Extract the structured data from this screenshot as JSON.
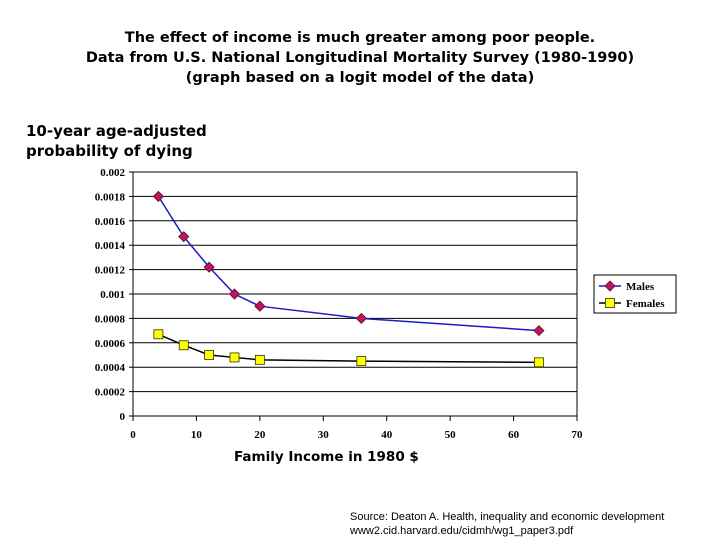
{
  "title_lines": [
    "The effect of income is much greater among poor people.",
    "Data from U.S. National Longitudinal Mortality Survey (1980-1990)",
    "(graph based on a logit model of the data)"
  ],
  "source_lines": [
    "Source:  Deaton A. Health, inequality and economic development",
    "www2.cid.harvard.edu/cidmh/wg1_paper3.pdf"
  ],
  "colors": {
    "males": "#1c1cc4",
    "males_marker": "#c0175a",
    "females": "#000000",
    "females_marker": "#ffff00"
  },
  "chart_data": {
    "type": "line",
    "title": "",
    "ylabel_lines": [
      "10-year age-adjusted",
      "probability of dying"
    ],
    "xlabel": "Family Income in 1980 $",
    "xlim": [
      0,
      70
    ],
    "ylim": [
      0,
      0.002
    ],
    "x_ticks": [
      "0",
      "10",
      "20",
      "30",
      "40",
      "50",
      "60",
      "70"
    ],
    "y_ticks": [
      "0",
      "0.0002",
      "0.0004",
      "0.0006",
      "0.0008",
      "0.001",
      "0.0012",
      "0.0014",
      "0.0016",
      "0.0018",
      "0.002"
    ],
    "grid": "horizontal",
    "legend_position": "right",
    "series": [
      {
        "name": "Males",
        "x": [
          4,
          8,
          12,
          16,
          20,
          36,
          64
        ],
        "y": [
          0.0018,
          0.00147,
          0.00122,
          0.001,
          0.0009,
          0.0008,
          0.0007
        ]
      },
      {
        "name": "Females",
        "x": [
          4,
          8,
          12,
          16,
          20,
          36,
          64
        ],
        "y": [
          0.00067,
          0.00058,
          0.0005,
          0.00048,
          0.00046,
          0.00045,
          0.00044
        ]
      }
    ]
  }
}
